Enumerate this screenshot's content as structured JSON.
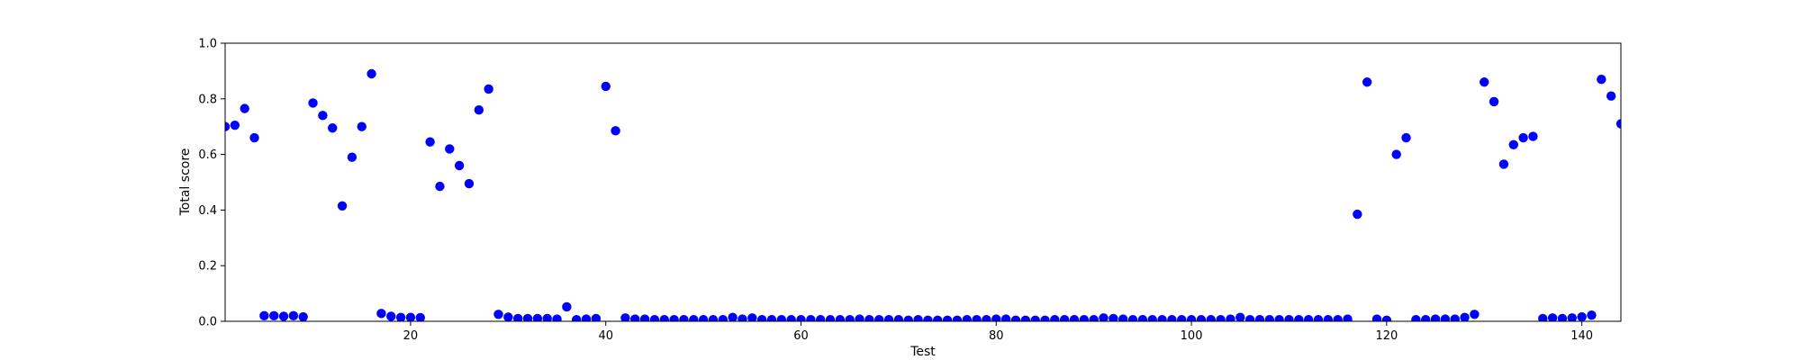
{
  "chart_data": {
    "type": "scatter",
    "title": "",
    "xlabel": "Test",
    "ylabel": "Total score",
    "xlim": [
      1,
      144
    ],
    "ylim": [
      0.0,
      1.0
    ],
    "x_ticks": [
      20,
      40,
      60,
      80,
      100,
      120,
      140
    ],
    "y_ticks": [
      "0.0",
      "0.2",
      "0.4",
      "0.6",
      "0.8",
      "1.0"
    ],
    "grid": false,
    "legend": "none",
    "marker_color": "#0000ff",
    "series": [
      {
        "x": [
          1,
          2,
          3,
          4,
          5,
          6,
          7,
          8,
          9,
          10,
          11,
          12,
          13,
          14,
          15,
          16,
          17,
          18,
          19,
          20,
          21,
          22,
          23,
          24,
          25,
          26,
          27,
          28,
          29,
          30,
          31,
          32,
          33,
          34,
          35,
          36,
          37,
          38,
          39,
          40,
          41,
          42,
          43,
          44,
          45,
          46,
          47,
          48,
          49,
          50,
          51,
          52,
          53,
          54,
          55,
          56,
          57,
          58,
          59,
          60,
          61,
          62,
          63,
          64,
          65,
          66,
          67,
          68,
          69,
          70,
          71,
          72,
          73,
          74,
          75,
          76,
          77,
          78,
          79,
          80,
          81,
          82,
          83,
          84,
          85,
          86,
          87,
          88,
          89,
          90,
          91,
          92,
          93,
          94,
          95,
          96,
          97,
          98,
          99,
          100,
          101,
          102,
          103,
          104,
          105,
          106,
          107,
          108,
          109,
          110,
          111,
          112,
          113,
          114,
          115,
          116,
          117,
          118,
          119,
          120,
          121,
          122,
          123,
          124,
          125,
          126,
          127,
          128,
          129,
          130,
          131,
          132,
          133,
          134,
          135,
          136,
          137,
          138,
          139,
          140,
          141,
          142,
          143,
          144
        ],
        "y": [
          0.7,
          0.705,
          0.765,
          0.66,
          0.02,
          0.02,
          0.018,
          0.02,
          0.016,
          0.785,
          0.74,
          0.695,
          0.415,
          0.59,
          0.7,
          0.89,
          0.028,
          0.018,
          0.014,
          0.014,
          0.013,
          0.645,
          0.485,
          0.62,
          0.56,
          0.495,
          0.76,
          0.835,
          0.025,
          0.015,
          0.01,
          0.01,
          0.01,
          0.01,
          0.008,
          0.052,
          0.006,
          0.008,
          0.01,
          0.845,
          0.685,
          0.012,
          0.008,
          0.008,
          0.006,
          0.006,
          0.006,
          0.006,
          0.006,
          0.006,
          0.006,
          0.006,
          0.014,
          0.008,
          0.012,
          0.006,
          0.006,
          0.006,
          0.006,
          0.006,
          0.006,
          0.006,
          0.006,
          0.006,
          0.006,
          0.008,
          0.006,
          0.006,
          0.006,
          0.006,
          0.004,
          0.006,
          0.004,
          0.004,
          0.004,
          0.004,
          0.006,
          0.006,
          0.006,
          0.008,
          0.008,
          0.004,
          0.004,
          0.004,
          0.004,
          0.006,
          0.006,
          0.006,
          0.006,
          0.006,
          0.012,
          0.01,
          0.008,
          0.006,
          0.006,
          0.006,
          0.006,
          0.006,
          0.006,
          0.006,
          0.006,
          0.006,
          0.006,
          0.008,
          0.014,
          0.006,
          0.006,
          0.006,
          0.006,
          0.006,
          0.006,
          0.006,
          0.006,
          0.006,
          0.006,
          0.008,
          0.385,
          0.86,
          0.008,
          0.004,
          0.6,
          0.66,
          0.006,
          0.006,
          0.008,
          0.008,
          0.008,
          0.014,
          0.025,
          0.86,
          0.79,
          0.565,
          0.635,
          0.66,
          0.665,
          0.01,
          0.012,
          0.01,
          0.012,
          0.016,
          0.022,
          0.87,
          0.81,
          0.71
        ]
      }
    ]
  }
}
